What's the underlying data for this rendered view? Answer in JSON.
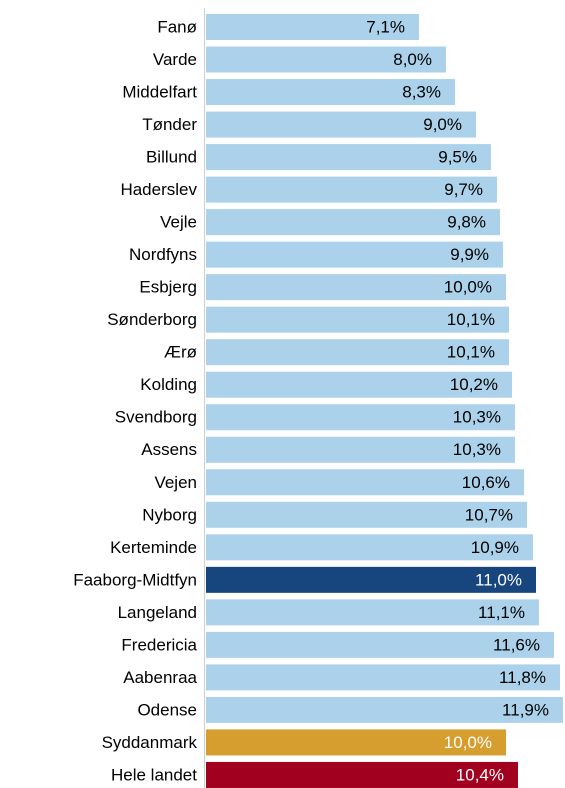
{
  "chart_data": {
    "type": "bar",
    "orientation": "horizontal",
    "categories": [
      "Fanø",
      "Varde",
      "Middelfart",
      "Tønder",
      "Billund",
      "Haderslev",
      "Vejle",
      "Nordfyns",
      "Esbjerg",
      "Sønderborg",
      "Ærø",
      "Kolding",
      "Svendborg",
      "Assens",
      "Vejen",
      "Nyborg",
      "Kerteminde",
      "Faaborg-Midtfyn",
      "Langeland",
      "Fredericia",
      "Aabenraa",
      "Odense",
      "Syddanmark",
      "Hele landet"
    ],
    "values": [
      7.1,
      8.0,
      8.3,
      9.0,
      9.5,
      9.7,
      9.8,
      9.9,
      10.0,
      10.1,
      10.1,
      10.2,
      10.3,
      10.3,
      10.6,
      10.7,
      10.9,
      11.0,
      11.1,
      11.6,
      11.8,
      11.9,
      10.0,
      10.4
    ],
    "value_labels": [
      "7,1%",
      "8,0%",
      "8,3%",
      "9,0%",
      "9,5%",
      "9,7%",
      "9,8%",
      "9,9%",
      "10,0%",
      "10,1%",
      "10,1%",
      "10,2%",
      "10,3%",
      "10,3%",
      "10,6%",
      "10,7%",
      "10,9%",
      "11,0%",
      "11,1%",
      "11,6%",
      "11,8%",
      "11,9%",
      "10,0%",
      "10,4%"
    ],
    "colors": [
      "#abd2ea",
      "#abd2ea",
      "#abd2ea",
      "#abd2ea",
      "#abd2ea",
      "#abd2ea",
      "#abd2ea",
      "#abd2ea",
      "#abd2ea",
      "#abd2ea",
      "#abd2ea",
      "#abd2ea",
      "#abd2ea",
      "#abd2ea",
      "#abd2ea",
      "#abd2ea",
      "#abd2ea",
      "#17457e",
      "#abd2ea",
      "#abd2ea",
      "#abd2ea",
      "#abd2ea",
      "#d69d2f",
      "#a1001e"
    ],
    "value_label_colors": [
      "#000",
      "#000",
      "#000",
      "#000",
      "#000",
      "#000",
      "#000",
      "#000",
      "#000",
      "#000",
      "#000",
      "#000",
      "#000",
      "#000",
      "#000",
      "#000",
      "#000",
      "#fff",
      "#000",
      "#000",
      "#000",
      "#000",
      "#fff",
      "#fff"
    ]
  }
}
